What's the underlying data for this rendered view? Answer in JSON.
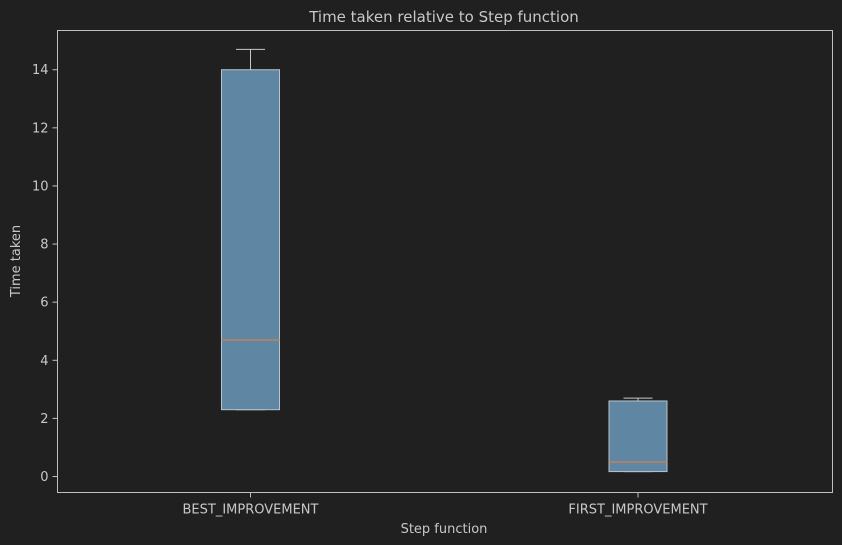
{
  "colors": {
    "background": "#202020",
    "text": "#c8c8c8",
    "axis": "#bfbfbf",
    "box_fill": "#5f87a4",
    "box_edge": "#b8c4cc",
    "median": "#c0805a",
    "whisker": "#c8c8c8"
  },
  "chart_data": {
    "type": "box",
    "title": "Time taken relative to Step function",
    "xlabel": "Step function",
    "ylabel": "Time taken",
    "ylim": [
      -0.55,
      15.35
    ],
    "yticks": [
      0,
      2,
      4,
      6,
      8,
      10,
      12,
      14
    ],
    "grid": false,
    "categories": [
      "BEST_IMPROVEMENT",
      "FIRST_IMPROVEMENT"
    ],
    "boxes": [
      {
        "category": "BEST_IMPROVEMENT",
        "whisker_low": 2.3,
        "q1": 2.3,
        "median": 4.7,
        "q3": 14.0,
        "whisker_high": 14.7
      },
      {
        "category": "FIRST_IMPROVEMENT",
        "whisker_low": 0.17,
        "q1": 0.17,
        "median": 0.5,
        "q3": 2.6,
        "whisker_high": 2.7
      }
    ]
  }
}
